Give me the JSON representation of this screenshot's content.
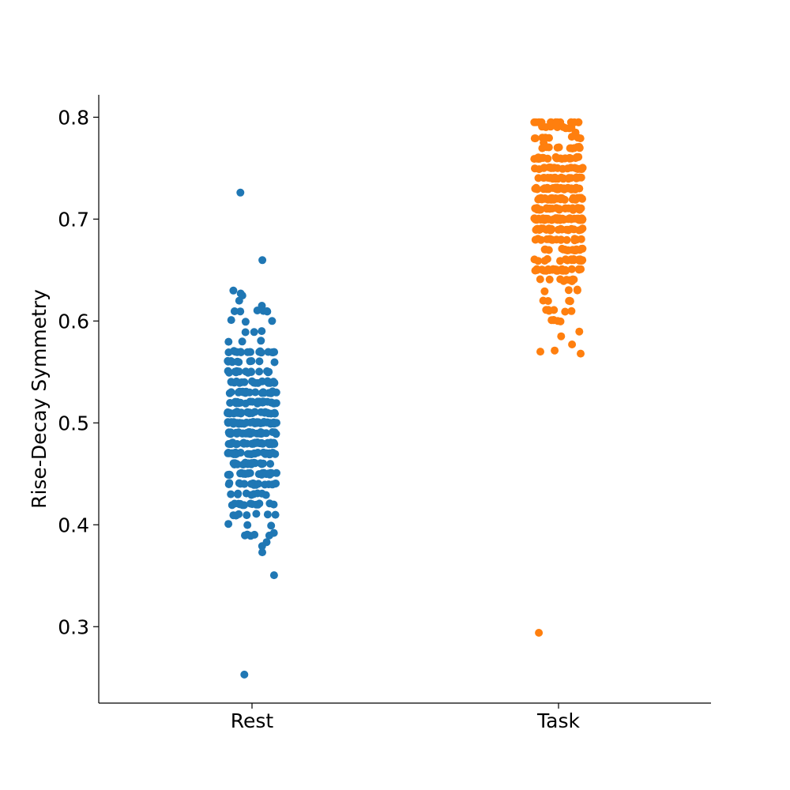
{
  "chart_data": {
    "type": "scatter",
    "subtype": "strip (jittered categorical scatter)",
    "title": "",
    "xlabel": "",
    "ylabel": "Rise-Decay Symmetry",
    "categories": [
      "Rest",
      "Task"
    ],
    "ylim": [
      0.225,
      0.822
    ],
    "yticks": [
      0.3,
      0.4,
      0.5,
      0.6,
      0.7,
      0.8
    ],
    "ytick_labels": [
      "0.3",
      "0.4",
      "0.5",
      "0.6",
      "0.7",
      "0.8"
    ],
    "grid": false,
    "legend": "none",
    "spines": [
      "left",
      "bottom"
    ],
    "series": [
      {
        "category": "Rest",
        "color": "#1f77b4",
        "n_points": 400,
        "center": 0.499,
        "spread_sd": 0.045,
        "min": 0.253,
        "max": 0.726,
        "notable_points": [
          0.726,
          0.627,
          0.625,
          0.615,
          0.253,
          0.373,
          0.383,
          0.392
        ]
      },
      {
        "category": "Task",
        "color": "#ff7f0e",
        "n_points": 400,
        "center": 0.713,
        "spread_sd": 0.045,
        "min": 0.294,
        "max": 0.795,
        "notable_points": [
          0.795,
          0.785,
          0.775,
          0.294,
          0.568,
          0.571,
          0.577,
          0.585
        ]
      }
    ]
  }
}
